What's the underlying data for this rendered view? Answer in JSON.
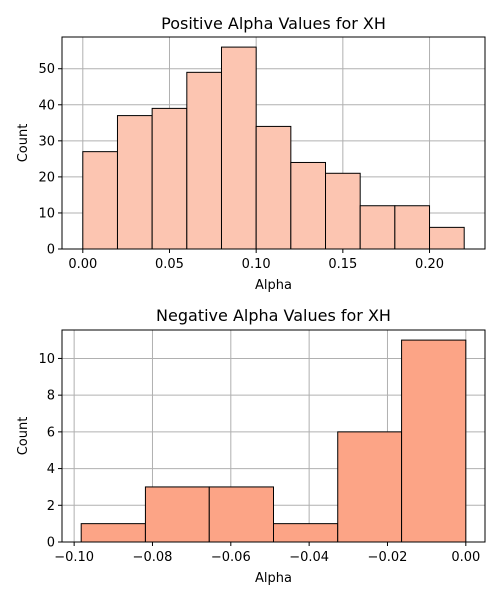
{
  "chart_data": [
    {
      "type": "bar",
      "title": "Positive Alpha Values for XH",
      "xlabel": "Alpha",
      "ylabel": "Count",
      "bar_color": "#fcc5b1",
      "grid": true,
      "xlim": [
        -0.012,
        0.232
      ],
      "ylim": [
        0,
        58.8
      ],
      "xticks": [
        0.0,
        0.05,
        0.1,
        0.15,
        0.2
      ],
      "xtick_labels": [
        "0.00",
        "0.05",
        "0.10",
        "0.15",
        "0.20"
      ],
      "yticks": [
        0,
        10,
        20,
        30,
        40,
        50
      ],
      "ytick_labels": [
        "0",
        "10",
        "20",
        "30",
        "40",
        "50"
      ],
      "bins": [
        {
          "x0": 0.0,
          "x1": 0.02,
          "count": 27
        },
        {
          "x0": 0.02,
          "x1": 0.04,
          "count": 37
        },
        {
          "x0": 0.04,
          "x1": 0.06,
          "count": 39
        },
        {
          "x0": 0.06,
          "x1": 0.08,
          "count": 49
        },
        {
          "x0": 0.08,
          "x1": 0.1,
          "count": 56
        },
        {
          "x0": 0.1,
          "x1": 0.12,
          "count": 34
        },
        {
          "x0": 0.12,
          "x1": 0.14,
          "count": 24
        },
        {
          "x0": 0.14,
          "x1": 0.16,
          "count": 21
        },
        {
          "x0": 0.16,
          "x1": 0.18,
          "count": 12
        },
        {
          "x0": 0.18,
          "x1": 0.2,
          "count": 12
        },
        {
          "x0": 0.2,
          "x1": 0.22,
          "count": 6
        }
      ]
    },
    {
      "type": "bar",
      "title": "Negative Alpha Values for XH",
      "xlabel": "Alpha",
      "ylabel": "Count",
      "bar_color": "#fca486",
      "grid": true,
      "xlim": [
        -0.1031,
        0.0049
      ],
      "ylim": [
        0,
        11.55
      ],
      "xticks": [
        -0.1,
        -0.08,
        -0.06,
        -0.04,
        -0.02,
        0.0
      ],
      "xtick_labels": [
        "−0.10",
        "−0.08",
        "−0.06",
        "−0.04",
        "−0.02",
        "0.00"
      ],
      "yticks": [
        0,
        2,
        4,
        6,
        8,
        10
      ],
      "ytick_labels": [
        "0",
        "2",
        "4",
        "6",
        "8",
        "10"
      ],
      "bins": [
        {
          "x0": -0.0982,
          "x1": -0.0818,
          "count": 1
        },
        {
          "x0": -0.0818,
          "x1": -0.0655,
          "count": 3
        },
        {
          "x0": -0.0655,
          "x1": -0.0491,
          "count": 3
        },
        {
          "x0": -0.0491,
          "x1": -0.0327,
          "count": 1
        },
        {
          "x0": -0.0327,
          "x1": -0.0164,
          "count": 6
        },
        {
          "x0": -0.0164,
          "x1": 0.0,
          "count": 11
        }
      ]
    }
  ]
}
